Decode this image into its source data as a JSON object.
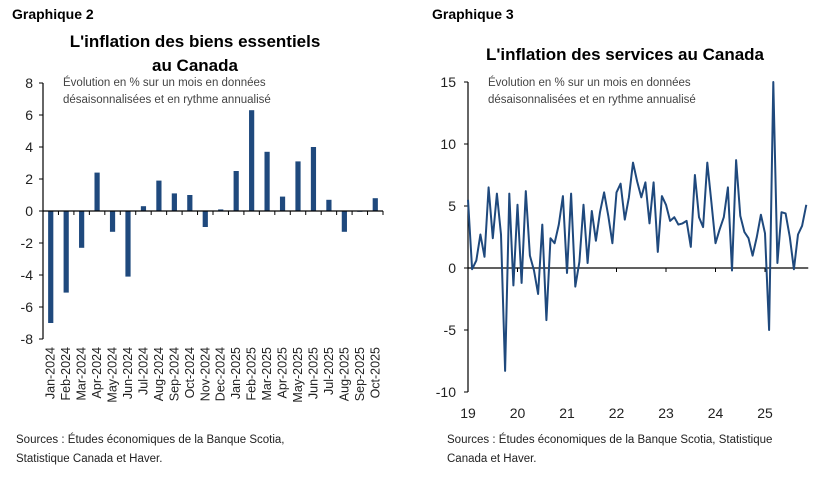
{
  "colors": {
    "series": "#1f497d",
    "axis": "#000000"
  },
  "chart_data": [
    {
      "type": "bar",
      "label": "Graphique 2",
      "title": "L'inflation des biens essentiels au Canada",
      "title_lines": [
        "L'inflation des biens essentiels",
        "au Canada"
      ],
      "subtitle_lines": [
        "Évolution en % sur un mois en données",
        "désaisonnalisées et en rythme annualisé"
      ],
      "source_lines": [
        "Sources : Études économiques de la Banque Scotia,",
        "Statistique Canada et Haver."
      ],
      "categories": [
        "Jan-2024",
        "Feb-2024",
        "Mar-2024",
        "Apr-2024",
        "May-2024",
        "Jun-2024",
        "Jul-2024",
        "Aug-2024",
        "Sep-2024",
        "Oct-2024",
        "Nov-2024",
        "Dec-2024",
        "Jan-2025",
        "Feb-2025",
        "Mar-2025",
        "Apr-2025",
        "May-2025",
        "Jun-2025",
        "Jul-2025",
        "Aug-2025",
        "Sep-2025",
        "Oct-2025"
      ],
      "values": [
        -7.0,
        -5.1,
        -2.3,
        2.4,
        -1.3,
        -4.1,
        0.3,
        1.9,
        1.1,
        1.0,
        -1.0,
        0.1,
        2.5,
        6.3,
        3.7,
        0.9,
        3.1,
        4.0,
        0.7,
        -1.3,
        -0.05,
        0.8
      ],
      "ylim": [
        -8,
        8
      ],
      "yticks": [
        "-8",
        "-6",
        "-4",
        "-2",
        "0",
        "2",
        "4",
        "6",
        "8"
      ],
      "grid": false
    },
    {
      "type": "line",
      "label": "Graphique 3",
      "title": "L'inflation des services au Canada",
      "subtitle_lines": [
        "Évolution en % sur un mois en données",
        "désaisonnalisées et en rythme annualisé"
      ],
      "source_lines": [
        "Sources : Études économiques de la Banque Scotia, Statistique",
        "Canada et Haver."
      ],
      "xticks": [
        "19",
        "20",
        "21",
        "22",
        "23",
        "24",
        "25"
      ],
      "x": [
        "2019-01",
        "2019-02",
        "2019-03",
        "2019-04",
        "2019-05",
        "2019-06",
        "2019-07",
        "2019-08",
        "2019-09",
        "2019-10",
        "2019-11",
        "2019-12",
        "2020-01",
        "2020-02",
        "2020-03",
        "2020-04",
        "2020-05",
        "2020-06",
        "2020-07",
        "2020-08",
        "2020-09",
        "2020-10",
        "2020-11",
        "2020-12",
        "2021-01",
        "2021-02",
        "2021-03",
        "2021-04",
        "2021-05",
        "2021-06",
        "2021-07",
        "2021-08",
        "2021-09",
        "2021-10",
        "2021-11",
        "2021-12",
        "2022-01",
        "2022-02",
        "2022-03",
        "2022-04",
        "2022-05",
        "2022-06",
        "2022-07",
        "2022-08",
        "2022-09",
        "2022-10",
        "2022-11",
        "2022-12",
        "2023-01",
        "2023-02",
        "2023-03",
        "2023-04",
        "2023-05",
        "2023-06",
        "2023-07",
        "2023-08",
        "2023-09",
        "2023-10",
        "2023-11",
        "2023-12",
        "2024-01",
        "2024-02",
        "2024-03",
        "2024-04",
        "2024-05",
        "2024-06",
        "2024-07",
        "2024-08",
        "2024-09",
        "2024-10",
        "2024-11",
        "2024-12",
        "2025-01",
        "2025-02",
        "2025-03",
        "2025-04",
        "2025-05",
        "2025-06",
        "2025-07",
        "2025-08",
        "2025-09",
        "2025-10",
        "2025-11"
      ],
      "y": [
        5.5,
        -0.1,
        0.6,
        2.7,
        0.9,
        6.5,
        2.4,
        6.0,
        2.7,
        -8.3,
        6.0,
        -1.4,
        5.1,
        -1.2,
        6.2,
        1.0,
        -0.2,
        -2.1,
        3.5,
        -4.2,
        2.4,
        2.0,
        3.5,
        5.8,
        -0.4,
        6.0,
        -1.5,
        0.5,
        5.1,
        0.4,
        4.6,
        2.2,
        4.5,
        6.1,
        4.2,
        2.0,
        6.1,
        6.8,
        3.9,
        5.7,
        8.5,
        7.0,
        5.7,
        6.9,
        3.6,
        6.9,
        1.3,
        5.8,
        5.1,
        3.8,
        4.1,
        3.5,
        3.6,
        3.8,
        1.7,
        7.5,
        4.1,
        3.3,
        8.5,
        5.3,
        2.0,
        3.1,
        4.1,
        6.5,
        -0.2,
        8.7,
        4.2,
        2.9,
        2.4,
        1.0,
        2.5,
        4.3,
        2.8,
        -5.0,
        15.0,
        0.4,
        4.5,
        4.4,
        2.5,
        -0.1,
        2.7,
        3.4,
        5.1
      ],
      "ylim": [
        -10,
        15
      ],
      "yticks": [
        "-10",
        "-5",
        "0",
        "5",
        "10",
        "15"
      ],
      "grid": false
    }
  ]
}
